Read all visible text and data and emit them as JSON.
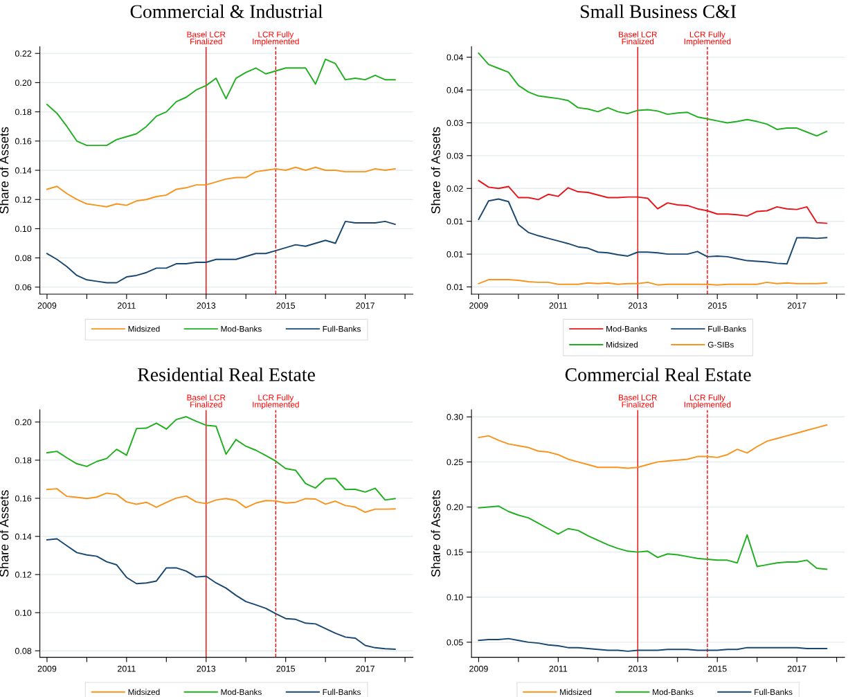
{
  "chart_data": [
    {
      "type": "line",
      "title": "Commercial & Industrial",
      "ylabel": "Share of Assets",
      "grid": "y",
      "legend": "bottom",
      "line_style": "solid",
      "marker": "none",
      "x": [
        2009,
        2009.25,
        2009.5,
        2009.75,
        2010,
        2010.25,
        2010.5,
        2010.75,
        2011,
        2011.25,
        2011.5,
        2011.75,
        2012,
        2012.25,
        2012.5,
        2012.75,
        2013,
        2013.25,
        2013.5,
        2013.75,
        2014,
        2014.25,
        2014.5,
        2014.75,
        2015,
        2015.25,
        2015.5,
        2015.75,
        2016,
        2016.25,
        2016.5,
        2016.75,
        2017,
        2017.25,
        2017.5,
        2017.75
      ],
      "xlim": [
        2008.82,
        2018.2
      ],
      "xticks": [
        2009,
        {
          "value": 2010,
          "label": null
        },
        2011,
        {
          "value": 2012,
          "label": null
        },
        2013,
        {
          "value": 2014,
          "label": null
        },
        2015,
        {
          "value": 2016,
          "label": null
        },
        2017,
        {
          "value": 2018,
          "label": null
        }
      ],
      "ylim": [
        0.0552,
        0.2246
      ],
      "yticks": [
        {
          "value": 0.06,
          "label": "0.06"
        },
        {
          "value": 0.08,
          "label": "0.08"
        },
        {
          "value": 0.1,
          "label": "0.10"
        },
        {
          "value": 0.12,
          "label": "0.12"
        },
        {
          "value": 0.14,
          "label": "0.14"
        },
        {
          "value": 0.16,
          "label": "0.16"
        },
        {
          "value": 0.18,
          "label": "0.18"
        },
        {
          "value": 0.2,
          "label": "0.20"
        },
        {
          "value": 0.22,
          "label": "0.22"
        }
      ],
      "ref_lines": [
        {
          "axis": "x",
          "value": 2013,
          "label": "Basel LCR\nFinalized",
          "color": "#ff0000",
          "line_style": "solid"
        },
        {
          "axis": "x",
          "value": 2014.75,
          "label": "LCR Fully\nImplemented",
          "color": "#ff0000",
          "line_style": "dashed"
        }
      ],
      "series": [
        {
          "name": "Midsized",
          "color": "#f7941d",
          "values": [
            0.127,
            0.129,
            0.124,
            0.12,
            0.117,
            0.116,
            0.115,
            0.117,
            0.116,
            0.119,
            0.12,
            0.122,
            0.123,
            0.127,
            0.128,
            0.13,
            0.13,
            0.132,
            0.134,
            0.135,
            0.135,
            0.139,
            0.14,
            0.141,
            0.14,
            0.142,
            0.14,
            0.142,
            0.14,
            0.14,
            0.139,
            0.139,
            0.139,
            0.141,
            0.14,
            0.141
          ]
        },
        {
          "name": "Mod-Banks",
          "color": "#1faf1f",
          "values": [
            0.185,
            0.179,
            0.17,
            0.16,
            0.157,
            0.157,
            0.157,
            0.161,
            0.163,
            0.165,
            0.17,
            0.177,
            0.18,
            0.187,
            0.19,
            0.195,
            0.198,
            0.203,
            0.189,
            0.203,
            0.207,
            0.21,
            0.206,
            0.208,
            0.21,
            0.21,
            0.21,
            0.199,
            0.216,
            0.213,
            0.202,
            0.203,
            0.202,
            0.205,
            0.202,
            0.202
          ]
        },
        {
          "name": "Full-Banks",
          "color": "#1a476f",
          "values": [
            0.083,
            0.079,
            0.074,
            0.068,
            0.065,
            0.064,
            0.063,
            0.063,
            0.067,
            0.068,
            0.07,
            0.073,
            0.073,
            0.076,
            0.076,
            0.077,
            0.077,
            0.079,
            0.079,
            0.079,
            0.081,
            0.083,
            0.083,
            0.085,
            0.087,
            0.089,
            0.088,
            0.09,
            0.092,
            0.09,
            0.105,
            0.104,
            0.104,
            0.104,
            0.105,
            0.103
          ]
        }
      ]
    },
    {
      "type": "line",
      "title": "Small Business C&I",
      "ylabel": "Share of Assets",
      "grid": "y",
      "legend": "bottom",
      "line_style": "solid",
      "marker": "none",
      "x": [
        2009,
        2009.25,
        2009.5,
        2009.75,
        2010,
        2010.25,
        2010.5,
        2010.75,
        2011,
        2011.25,
        2011.5,
        2011.75,
        2012,
        2012.25,
        2012.5,
        2012.75,
        2013,
        2013.25,
        2013.5,
        2013.75,
        2014,
        2014.25,
        2014.5,
        2014.75,
        2015,
        2015.25,
        2015.5,
        2015.75,
        2016,
        2016.25,
        2016.5,
        2016.75,
        2017,
        2017.25,
        2017.5,
        2017.75
      ],
      "xlim": [
        2008.82,
        2018.2
      ],
      "xticks": [
        2009,
        {
          "value": 2010,
          "label": null
        },
        2011,
        {
          "value": 2012,
          "label": null
        },
        2013,
        {
          "value": 2014,
          "label": null
        },
        2015,
        {
          "value": 2016,
          "label": null
        },
        2017,
        {
          "value": 2018,
          "label": null
        }
      ],
      "ylim": [
        0.0039,
        0.0416
      ],
      "yticks": [
        {
          "value": 0.005,
          "label": "0.01"
        },
        {
          "value": 0.01,
          "label": "0.01"
        },
        {
          "value": 0.015,
          "label": "0.01"
        },
        {
          "value": 0.02,
          "label": "0.02"
        },
        {
          "value": 0.025,
          "label": "0.03"
        },
        {
          "value": 0.03,
          "label": "0.03"
        },
        {
          "value": 0.035,
          "label": "0.04"
        },
        {
          "value": 0.04,
          "label": "0.04"
        }
      ],
      "ref_lines": [
        {
          "axis": "x",
          "value": 2013,
          "label": "Basel LCR\nFinalized",
          "color": "#ff0000",
          "line_style": "solid"
        },
        {
          "axis": "x",
          "value": 2014.75,
          "label": "LCR Fully\nImplemented",
          "color": "#ff0000",
          "line_style": "dashed"
        }
      ],
      "series": [
        {
          "name": "Mod-Banks",
          "color": "#e8141a",
          "values": [
            0.0212,
            0.0202,
            0.02,
            0.0203,
            0.0186,
            0.0186,
            0.0183,
            0.0191,
            0.0188,
            0.0201,
            0.0195,
            0.0194,
            0.019,
            0.0186,
            0.0186,
            0.0187,
            0.0187,
            0.0185,
            0.0169,
            0.0178,
            0.0175,
            0.0174,
            0.0169,
            0.0166,
            0.0161,
            0.0161,
            0.016,
            0.0158,
            0.0165,
            0.0166,
            0.0172,
            0.0169,
            0.0168,
            0.0172,
            0.0148,
            0.0147
          ]
        },
        {
          "name": "Midsized",
          "color": "#1faf1f",
          "values": [
            0.0406,
            0.0389,
            0.0383,
            0.0377,
            0.0357,
            0.0347,
            0.0341,
            0.0339,
            0.0337,
            0.0334,
            0.0323,
            0.0321,
            0.0317,
            0.0323,
            0.0317,
            0.0314,
            0.0319,
            0.032,
            0.0318,
            0.0313,
            0.0315,
            0.0316,
            0.0309,
            0.0306,
            0.0303,
            0.03,
            0.0302,
            0.0305,
            0.0302,
            0.0298,
            0.029,
            0.0292,
            0.0292,
            0.0286,
            0.028,
            0.0287
          ]
        },
        {
          "name": "Full-Banks",
          "color": "#1a476f",
          "values": [
            0.0153,
            0.0181,
            0.0184,
            0.018,
            0.0145,
            0.0133,
            0.0128,
            0.0124,
            0.012,
            0.0116,
            0.0111,
            0.0109,
            0.0103,
            0.0102,
            0.0099,
            0.0097,
            0.0103,
            0.0103,
            0.0102,
            0.01,
            0.01,
            0.01,
            0.0104,
            0.0096,
            0.0097,
            0.0096,
            0.0093,
            0.009,
            0.0089,
            0.0088,
            0.0086,
            0.0085,
            0.0125,
            0.0125,
            0.0124,
            0.0125
          ]
        },
        {
          "name": "G-SIBs",
          "color": "#f7941d",
          "values": [
            0.0055,
            0.0061,
            0.0061,
            0.0061,
            0.006,
            0.0058,
            0.0057,
            0.0057,
            0.0054,
            0.0054,
            0.0054,
            0.0056,
            0.0055,
            0.0056,
            0.0054,
            0.0055,
            0.0055,
            0.0057,
            0.0053,
            0.0054,
            0.0054,
            0.0054,
            0.0054,
            0.0054,
            0.0053,
            0.0054,
            0.0054,
            0.0054,
            0.0054,
            0.0057,
            0.0055,
            0.0056,
            0.0055,
            0.0055,
            0.0055,
            0.0056
          ]
        }
      ]
    },
    {
      "type": "line",
      "title": "Residential Real Estate",
      "ylabel": "Share of Assets",
      "grid": "y",
      "legend": "bottom",
      "line_style": "solid",
      "marker": "none",
      "x": [
        2009,
        2009.25,
        2009.5,
        2009.75,
        2010,
        2010.25,
        2010.5,
        2010.75,
        2011,
        2011.25,
        2011.5,
        2011.75,
        2012,
        2012.25,
        2012.5,
        2012.75,
        2013,
        2013.25,
        2013.5,
        2013.75,
        2014,
        2014.25,
        2014.5,
        2014.75,
        2015,
        2015.25,
        2015.5,
        2015.75,
        2016,
        2016.25,
        2016.5,
        2016.75,
        2017,
        2017.25,
        2017.5,
        2017.75
      ],
      "xlim": [
        2008.82,
        2018.2
      ],
      "xticks": [
        2009,
        {
          "value": 2010,
          "label": null
        },
        2011,
        {
          "value": 2012,
          "label": null
        },
        2013,
        {
          "value": 2014,
          "label": null
        },
        2015,
        {
          "value": 2016,
          "label": null
        },
        2017,
        {
          "value": 2018,
          "label": null
        }
      ],
      "ylim": [
        0.0766,
        0.2064
      ],
      "yticks": [
        {
          "value": 0.08,
          "label": "0.08"
        },
        {
          "value": 0.1,
          "label": "0.10"
        },
        {
          "value": 0.12,
          "label": "0.12"
        },
        {
          "value": 0.14,
          "label": "0.14"
        },
        {
          "value": 0.16,
          "label": "0.16"
        },
        {
          "value": 0.18,
          "label": "0.18"
        },
        {
          "value": 0.2,
          "label": "0.20"
        }
      ],
      "ref_lines": [
        {
          "axis": "x",
          "value": 2013,
          "label": "Basel LCR\nFinalized",
          "color": "#ff0000",
          "line_style": "solid"
        },
        {
          "axis": "x",
          "value": 2014.75,
          "label": "LCR Fully\nImplemented",
          "color": "#ff0000",
          "line_style": "dashed"
        }
      ],
      "series": [
        {
          "name": "Midsized",
          "color": "#f7941d",
          "values": [
            0.1646,
            0.165,
            0.161,
            0.1605,
            0.1599,
            0.1606,
            0.1627,
            0.162,
            0.1581,
            0.1569,
            0.1579,
            0.1553,
            0.1578,
            0.1601,
            0.1612,
            0.1581,
            0.1572,
            0.1591,
            0.1599,
            0.1589,
            0.1551,
            0.1575,
            0.1588,
            0.1586,
            0.1575,
            0.1579,
            0.1598,
            0.1596,
            0.1569,
            0.1585,
            0.1562,
            0.1554,
            0.1527,
            0.1543,
            0.1543,
            0.1544
          ]
        },
        {
          "name": "Mod-Banks",
          "color": "#1faf1f",
          "values": [
            0.1839,
            0.1846,
            0.1812,
            0.1781,
            0.1767,
            0.1793,
            0.1809,
            0.1857,
            0.1826,
            0.1966,
            0.1968,
            0.1994,
            0.1963,
            0.2013,
            0.2028,
            0.2004,
            0.1983,
            0.1978,
            0.1831,
            0.1908,
            0.1873,
            0.1852,
            0.1824,
            0.1795,
            0.1756,
            0.1747,
            0.1677,
            0.1654,
            0.1702,
            0.1704,
            0.1646,
            0.1647,
            0.1633,
            0.1653,
            0.1591,
            0.1598
          ]
        },
        {
          "name": "Full-Banks",
          "color": "#1a476f",
          "values": [
            0.1382,
            0.1387,
            0.1351,
            0.1315,
            0.1303,
            0.1296,
            0.1267,
            0.1251,
            0.1185,
            0.1152,
            0.1156,
            0.1166,
            0.1235,
            0.1235,
            0.1218,
            0.1187,
            0.1191,
            0.1156,
            0.1129,
            0.1091,
            0.1058,
            0.1041,
            0.1023,
            0.0995,
            0.0969,
            0.0965,
            0.0945,
            0.0941,
            0.0917,
            0.0892,
            0.0872,
            0.0866,
            0.0828,
            0.0816,
            0.0811,
            0.0808
          ]
        }
      ]
    },
    {
      "type": "line",
      "title": "Commercial Real Estate",
      "ylabel": "Share of Assets",
      "grid": "y",
      "legend": "bottom",
      "line_style": "solid",
      "marker": "none",
      "x": [
        2009,
        2009.25,
        2009.5,
        2009.75,
        2010,
        2010.25,
        2010.5,
        2010.75,
        2011,
        2011.25,
        2011.5,
        2011.75,
        2012,
        2012.25,
        2012.5,
        2012.75,
        2013,
        2013.25,
        2013.5,
        2013.75,
        2014,
        2014.25,
        2014.5,
        2014.75,
        2015,
        2015.25,
        2015.5,
        2015.75,
        2016,
        2016.25,
        2016.5,
        2016.75,
        2017,
        2017.25,
        2017.5,
        2017.75
      ],
      "xlim": [
        2008.82,
        2018.2
      ],
      "xticks": [
        2009,
        {
          "value": 2010,
          "label": null
        },
        2011,
        {
          "value": 2012,
          "label": null
        },
        2013,
        {
          "value": 2014,
          "label": null
        },
        2015,
        {
          "value": 2016,
          "label": null
        },
        2017,
        {
          "value": 2018,
          "label": null
        }
      ],
      "ylim": [
        0.0333,
        0.3078
      ],
      "yticks": [
        {
          "value": 0.05,
          "label": "0.05"
        },
        {
          "value": 0.1,
          "label": "0.10"
        },
        {
          "value": 0.15,
          "label": "0.15"
        },
        {
          "value": 0.2,
          "label": "0.20"
        },
        {
          "value": 0.25,
          "label": "0.25"
        },
        {
          "value": 0.3,
          "label": "0.30"
        }
      ],
      "ref_lines": [
        {
          "axis": "x",
          "value": 2013,
          "label": "Basel LCR\nFinalized",
          "color": "#ff0000",
          "line_style": "solid"
        },
        {
          "axis": "x",
          "value": 2014.75,
          "label": "LCR Fully\nImplemented",
          "color": "#ff0000",
          "line_style": "dashed"
        }
      ],
      "series": [
        {
          "name": "Midsized",
          "color": "#f7941d",
          "values": [
            0.277,
            0.279,
            0.274,
            0.27,
            0.268,
            0.266,
            0.262,
            0.261,
            0.258,
            0.253,
            0.25,
            0.247,
            0.244,
            0.244,
            0.244,
            0.243,
            0.244,
            0.247,
            0.25,
            0.251,
            0.252,
            0.253,
            0.256,
            0.256,
            0.255,
            0.258,
            0.264,
            0.26,
            0.267,
            0.273,
            0.276,
            0.279,
            0.282,
            0.285,
            0.288,
            0.291
          ]
        },
        {
          "name": "Mod-Banks",
          "color": "#1faf1f",
          "values": [
            0.199,
            0.2,
            0.201,
            0.195,
            0.191,
            0.188,
            0.182,
            0.176,
            0.17,
            0.176,
            0.174,
            0.168,
            0.163,
            0.158,
            0.154,
            0.151,
            0.15,
            0.151,
            0.144,
            0.148,
            0.147,
            0.145,
            0.143,
            0.142,
            0.141,
            0.141,
            0.138,
            0.169,
            0.134,
            0.136,
            0.138,
            0.139,
            0.139,
            0.141,
            0.132,
            0.131
          ]
        },
        {
          "name": "Full-Banks",
          "color": "#1a476f",
          "values": [
            0.052,
            0.053,
            0.053,
            0.054,
            0.052,
            0.05,
            0.049,
            0.047,
            0.046,
            0.044,
            0.044,
            0.043,
            0.042,
            0.041,
            0.041,
            0.04,
            0.041,
            0.041,
            0.041,
            0.042,
            0.042,
            0.042,
            0.041,
            0.041,
            0.041,
            0.042,
            0.042,
            0.044,
            0.044,
            0.044,
            0.044,
            0.044,
            0.044,
            0.043,
            0.043,
            0.043
          ]
        }
      ]
    }
  ]
}
